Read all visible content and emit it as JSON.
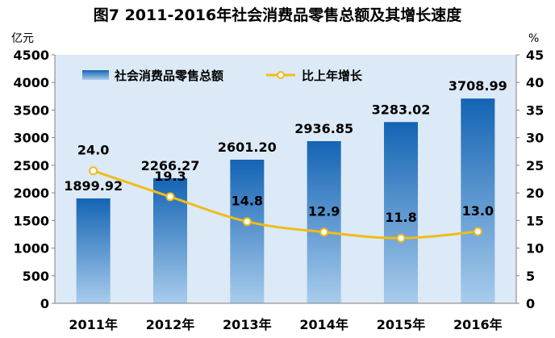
{
  "chart_data": {
    "type": "bar",
    "title": "图7  2011-2016年社会消费品零售总额及其增长速度",
    "categories": [
      "2011年",
      "2012年",
      "2013年",
      "2014年",
      "2015年",
      "2016年"
    ],
    "series": [
      {
        "name": "社会消费品零售总额",
        "type": "bar",
        "axis": "left",
        "values": [
          1899.92,
          2266.27,
          2601.2,
          2936.85,
          3283.02,
          3708.99
        ],
        "labels": [
          "1899.92",
          "2266.27",
          "2601.20",
          "2936.85",
          "3283.02",
          "3708.99"
        ]
      },
      {
        "name": "比上年增长",
        "type": "line",
        "axis": "right",
        "values": [
          24.0,
          19.3,
          14.8,
          12.9,
          11.8,
          13.0
        ],
        "labels": [
          "24.0",
          "19.3",
          "14.8",
          "12.9",
          "11.8",
          "13.0"
        ]
      }
    ],
    "ylabel": "亿元",
    "y2label": "%",
    "ylim": [
      0,
      4500
    ],
    "yticks": [
      "0",
      "500",
      "1000",
      "1500",
      "2000",
      "2500",
      "3000",
      "3500",
      "4000",
      "4500"
    ],
    "y2lim": [
      0,
      45
    ],
    "y2ticks": [
      "0",
      "5",
      "10",
      "15",
      "20",
      "25",
      "30",
      "35",
      "40",
      "45"
    ],
    "grid": false,
    "legend": "top-left",
    "colors": {
      "plot_bg": "#dce9f6",
      "bar_top": "#1464b4",
      "bar_bottom": "#a8ccec",
      "line": "#f0bc1a",
      "marker_fill": "#ffffff"
    }
  }
}
